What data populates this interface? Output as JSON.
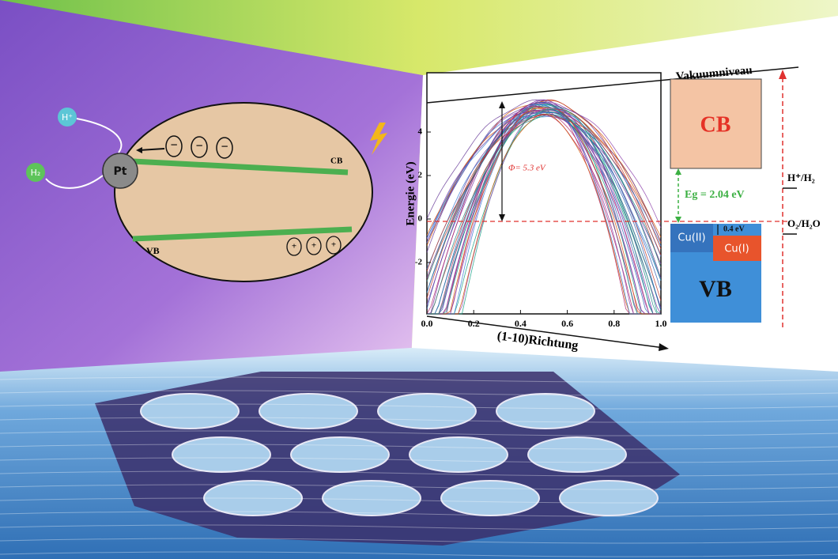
{
  "scheme": {
    "proton": "H⁺",
    "hydrogen": "H₂",
    "platinum": "Pt",
    "cb_label": "CB",
    "vb_label": "VB",
    "electrons": [
      "−",
      "−",
      "−"
    ],
    "holes": [
      "+",
      "+",
      "+"
    ]
  },
  "band_plot": {
    "y_axis_label": "Energie (eV)",
    "x_axis_label": "(1-10)Richtung",
    "xticks": [
      "0.0",
      "0.2",
      "0.4",
      "0.6",
      "0.8",
      "1.0"
    ],
    "yticks": [
      "4",
      "2",
      "0",
      "-2"
    ],
    "work_function": "Φ= 5.3 eV"
  },
  "energy_diagram": {
    "vacuum_level": "Vakuumniveau",
    "cb": "CB",
    "vb": "VB",
    "cu2": "Cu(II)",
    "cu1": "Cu(I)",
    "offset": "0.4 eV",
    "band_gap": "Eg = 2.04 eV",
    "h_couple": "H⁺/H₂",
    "o_couple": "O₂/H₂O"
  }
}
